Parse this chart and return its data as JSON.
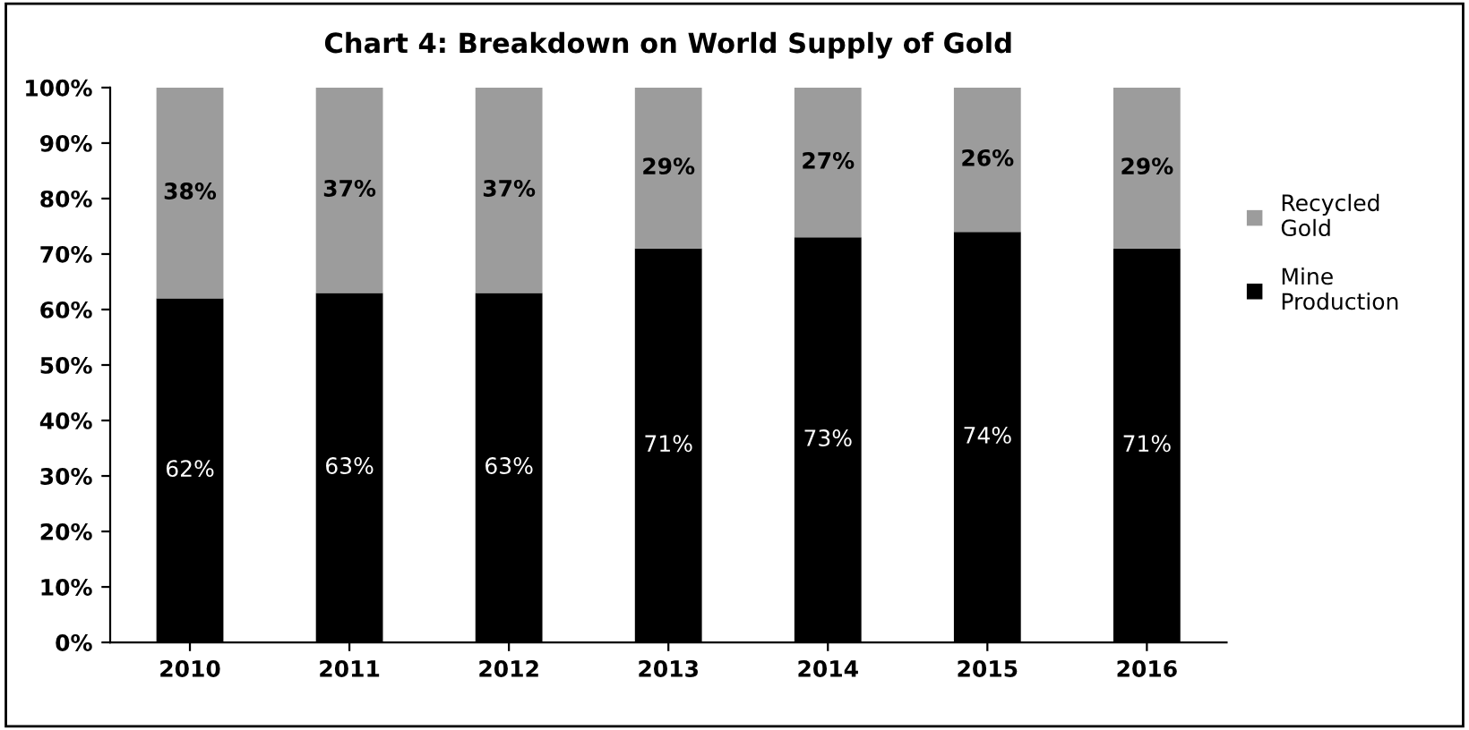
{
  "chart_data": {
    "type": "bar",
    "title": "Chart 4: Breakdown on World Supply of Gold",
    "categories": [
      "2010",
      "2011",
      "2012",
      "2013",
      "2014",
      "2015",
      "2016"
    ],
    "stacked": true,
    "legend": "right",
    "grid": false,
    "ylim": [
      0,
      100
    ],
    "yticks": [
      {
        "value": 0,
        "label": "0%"
      },
      {
        "value": 10,
        "label": "10%"
      },
      {
        "value": 20,
        "label": "20%"
      },
      {
        "value": 30,
        "label": "30%"
      },
      {
        "value": 40,
        "label": "40%"
      },
      {
        "value": 50,
        "label": "50%"
      },
      {
        "value": 60,
        "label": "60%"
      },
      {
        "value": 70,
        "label": "70%"
      },
      {
        "value": 80,
        "label": "80%"
      },
      {
        "value": 90,
        "label": "90%"
      },
      {
        "value": 100,
        "label": "100%"
      }
    ],
    "series": [
      {
        "name": "Mine Production",
        "color": "#000000",
        "values": [
          62,
          63,
          63,
          71,
          73,
          74,
          71
        ],
        "value_labels": [
          "62%",
          "63%",
          "63%",
          "71%",
          "73%",
          "74%",
          "71%"
        ]
      },
      {
        "name": "Recycled Gold",
        "color": "#9c9c9c",
        "values": [
          38,
          37,
          37,
          29,
          27,
          26,
          29
        ],
        "value_labels": [
          "38%",
          "37%",
          "37%",
          "29%",
          "27%",
          "26%",
          "29%"
        ]
      }
    ]
  }
}
